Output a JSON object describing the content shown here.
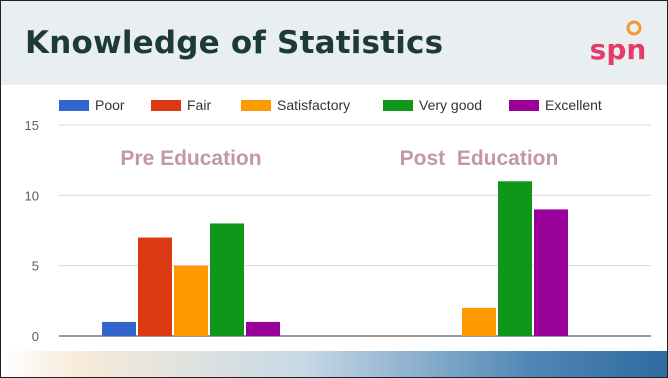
{
  "slide": {
    "title": "Knowledge of Statistics",
    "logo_text": "spn"
  },
  "colors": {
    "title": "#1c3b35",
    "group_label": "#c397ab",
    "axis_text": "#5f5f5f",
    "gridline": "#d9d9d9",
    "logo_text": "#e63b6a",
    "logo_circle": "#f29a2e"
  },
  "chart_data": {
    "type": "bar",
    "categories": [
      "Pre Education",
      "Post  Education"
    ],
    "series": [
      {
        "name": "Poor",
        "color": "#3366cc",
        "values": [
          1,
          0
        ]
      },
      {
        "name": "Fair",
        "color": "#dc3912",
        "values": [
          7,
          0
        ]
      },
      {
        "name": "Satisfactory",
        "color": "#ff9900",
        "values": [
          5,
          2
        ]
      },
      {
        "name": "Very good",
        "color": "#109618",
        "values": [
          8,
          11
        ]
      },
      {
        "name": "Excellent",
        "color": "#990099",
        "values": [
          1,
          9
        ]
      }
    ],
    "yticks": [
      0,
      5,
      10,
      15
    ],
    "ylim": [
      0,
      15
    ],
    "grid": true,
    "legend": "top"
  }
}
